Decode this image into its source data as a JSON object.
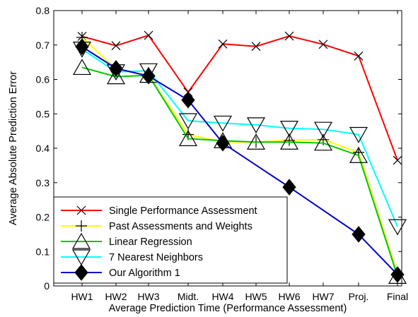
{
  "chart_data": {
    "type": "line",
    "title": "",
    "xlabel": "Average Prediction Time (Performance Assessment)",
    "ylabel": "Average Absolute Prediction Error",
    "categories": [
      "HW1",
      "HW2",
      "HW3",
      "Midt.",
      "HW4",
      "HW5",
      "HW6",
      "HW7",
      "Proj.",
      "Final"
    ],
    "ylim": [
      0,
      0.8
    ],
    "yticks": [
      0,
      0.1,
      0.2,
      0.3,
      0.4,
      0.5,
      0.6,
      0.7,
      0.8
    ],
    "ytick_labels": [
      "0",
      "0.1",
      "0.2",
      "0.3",
      "0.4",
      "0.5",
      "0.6",
      "0.7",
      "0.8"
    ],
    "grid": false,
    "legend_position": "bottom-left",
    "series": [
      {
        "name": "Single Performance Assessment",
        "color": "#ff0000",
        "marker": "x",
        "values": [
          0.725,
          0.698,
          0.728,
          0.563,
          0.703,
          0.696,
          0.726,
          0.702,
          0.668,
          0.365
        ]
      },
      {
        "name": "Past Assessments and Weights",
        "color": "#ffff00",
        "marker": "plus",
        "values": [
          0.722,
          0.63,
          0.612,
          0.44,
          0.418,
          0.418,
          0.423,
          0.425,
          0.388,
          0.035
        ]
      },
      {
        "name": "Linear Regression",
        "color": "#00c800",
        "marker": "triangle-up",
        "values": [
          0.635,
          0.608,
          0.612,
          0.428,
          0.422,
          0.418,
          0.418,
          0.415,
          0.379,
          0.028
        ]
      },
      {
        "name": "7 Nearest Neighbors",
        "color": "#00ffff",
        "marker": "triangle-down",
        "values": [
          0.688,
          0.622,
          0.625,
          0.48,
          0.473,
          0.468,
          0.458,
          0.455,
          0.44,
          0.172
        ]
      },
      {
        "name": "Our Algorithm 1",
        "color": "#0000cc",
        "marker": "diamond",
        "values": [
          0.695,
          0.632,
          0.61,
          0.54,
          0.415,
          null,
          0.287,
          null,
          0.15,
          0.033
        ]
      }
    ]
  }
}
